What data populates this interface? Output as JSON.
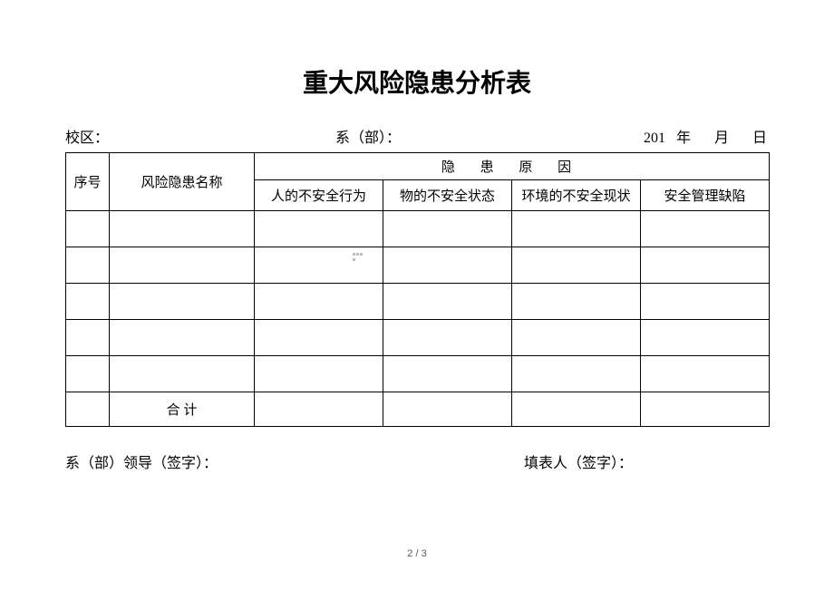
{
  "title": "重大风险隐患分析表",
  "header": {
    "campus_label": "校区：",
    "dept_label": "系（部）：",
    "date_year_prefix": "201",
    "date_year_unit": "年",
    "date_month_unit": "月",
    "date_day_unit": "日"
  },
  "table": {
    "col_seq": "序号",
    "col_name": "风险隐患名称",
    "col_reason_group": "隐 患 原 因",
    "col_reason_1": "人的不安全行为",
    "col_reason_2": "物的不安全状态",
    "col_reason_3": "环境的不安全现状",
    "col_reason_4": "安全管理缺陷",
    "total_label": "合  计",
    "rows": [
      {
        "seq": "",
        "name": "",
        "r1": "",
        "r2": "",
        "r3": "",
        "r4": ""
      },
      {
        "seq": "",
        "name": "",
        "r1": "",
        "r2": "",
        "r3": "",
        "r4": ""
      },
      {
        "seq": "",
        "name": "",
        "r1": "",
        "r2": "",
        "r3": "",
        "r4": ""
      },
      {
        "seq": "",
        "name": "",
        "r1": "",
        "r2": "",
        "r3": "",
        "r4": ""
      },
      {
        "seq": "",
        "name": "",
        "r1": "",
        "r2": "",
        "r3": "",
        "r4": ""
      }
    ]
  },
  "footer": {
    "leader_sign": "系（部）领导（签字）：",
    "filler_sign": "填表人（签字）："
  },
  "pagenum": "2 / 3",
  "colors": {
    "background": "#ffffff",
    "border": "#000000",
    "text": "#000000",
    "pagenum": "#595959"
  },
  "fonts": {
    "title_family": "SimHei",
    "body_family": "SimSun",
    "title_size_pt": 21,
    "body_size_pt": 12
  }
}
